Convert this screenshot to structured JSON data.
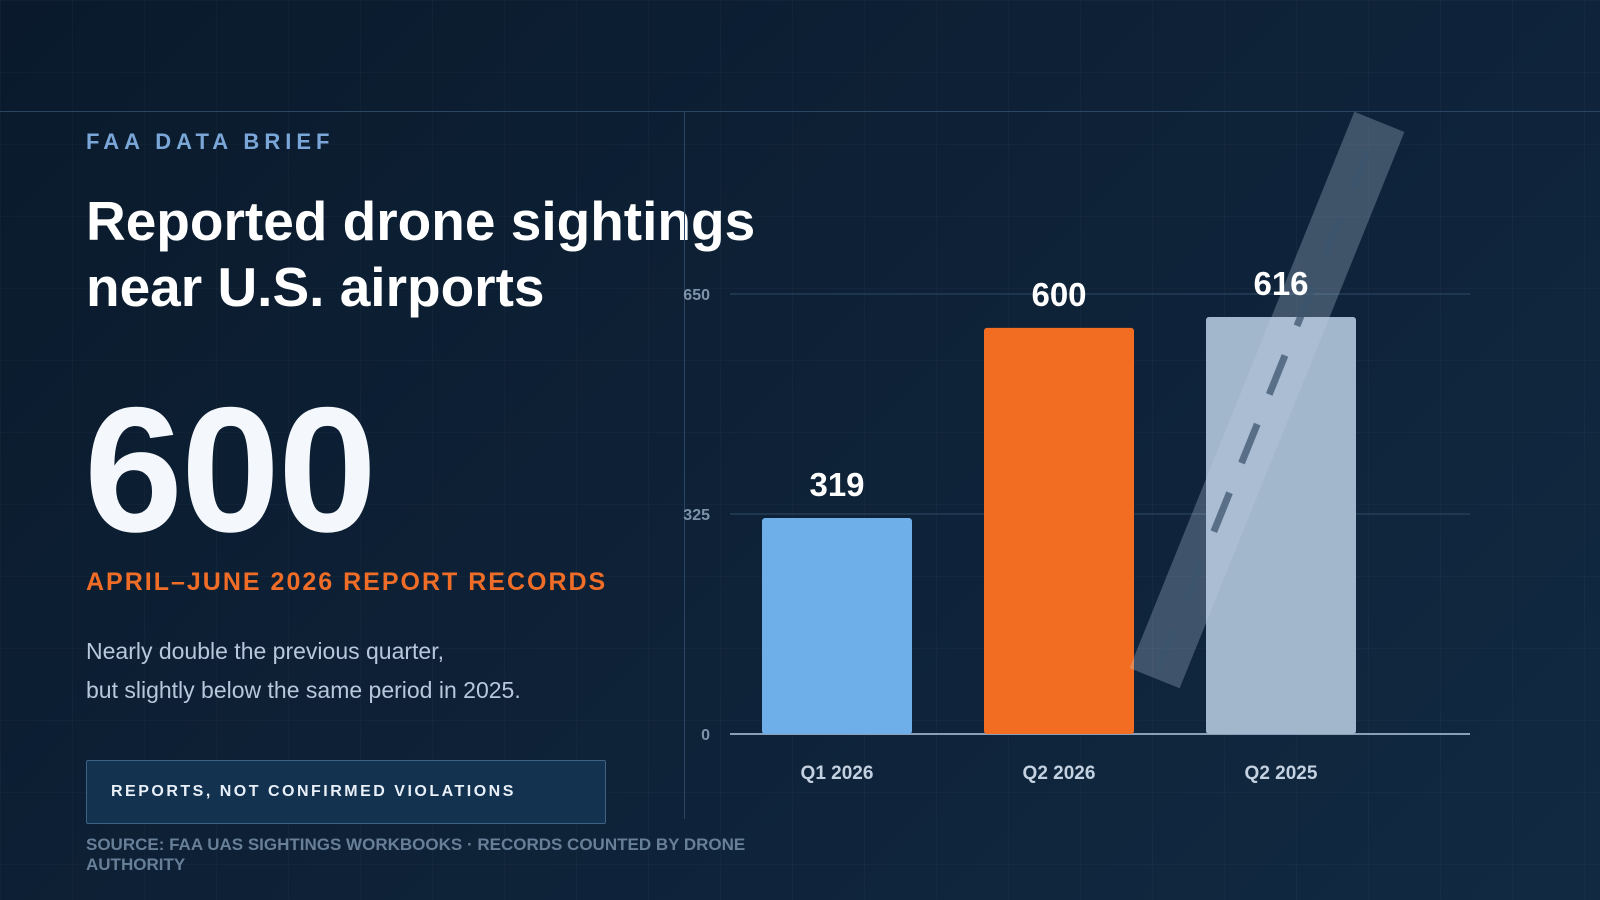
{
  "header": {
    "kicker": "FAA DATA BRIEF",
    "title_line1": "Reported drone sightings",
    "title_line2": "near U.S. airports"
  },
  "highlight": {
    "value": "600",
    "caption": "APRIL–JUNE 2026 REPORT RECORDS",
    "body_line1": "Nearly double the previous quarter,",
    "body_line2": "but slightly below the same period in 2025."
  },
  "note": {
    "label": "REPORTS, NOT CONFIRMED VIOLATIONS"
  },
  "footer": {
    "source": "SOURCE: FAA UAS SIGHTINGS WORKBOOKS · RECORDS COUNTED BY DRONE AUTHORITY"
  },
  "colors": {
    "q1_2026": "#6eaee9",
    "q2_2026": "#f26c21",
    "q2_2025": "#a2b6cc",
    "accent": "#ef6d26",
    "kicker": "#7aa6d8"
  },
  "decor": {
    "runway_icon": "runway-icon"
  },
  "chart_data": {
    "type": "bar",
    "categories": [
      "Q1 2026",
      "Q2 2026",
      "Q2 2025"
    ],
    "values": [
      319,
      600,
      616
    ],
    "value_labels": [
      "319",
      "600",
      "616"
    ],
    "bar_colors": [
      "#6eaee9",
      "#f26c21",
      "#a2b6cc"
    ],
    "yticks": [
      0,
      325,
      650
    ],
    "ylim": [
      0,
      650
    ],
    "grid": true,
    "title": "",
    "xlabel": "",
    "ylabel": ""
  }
}
